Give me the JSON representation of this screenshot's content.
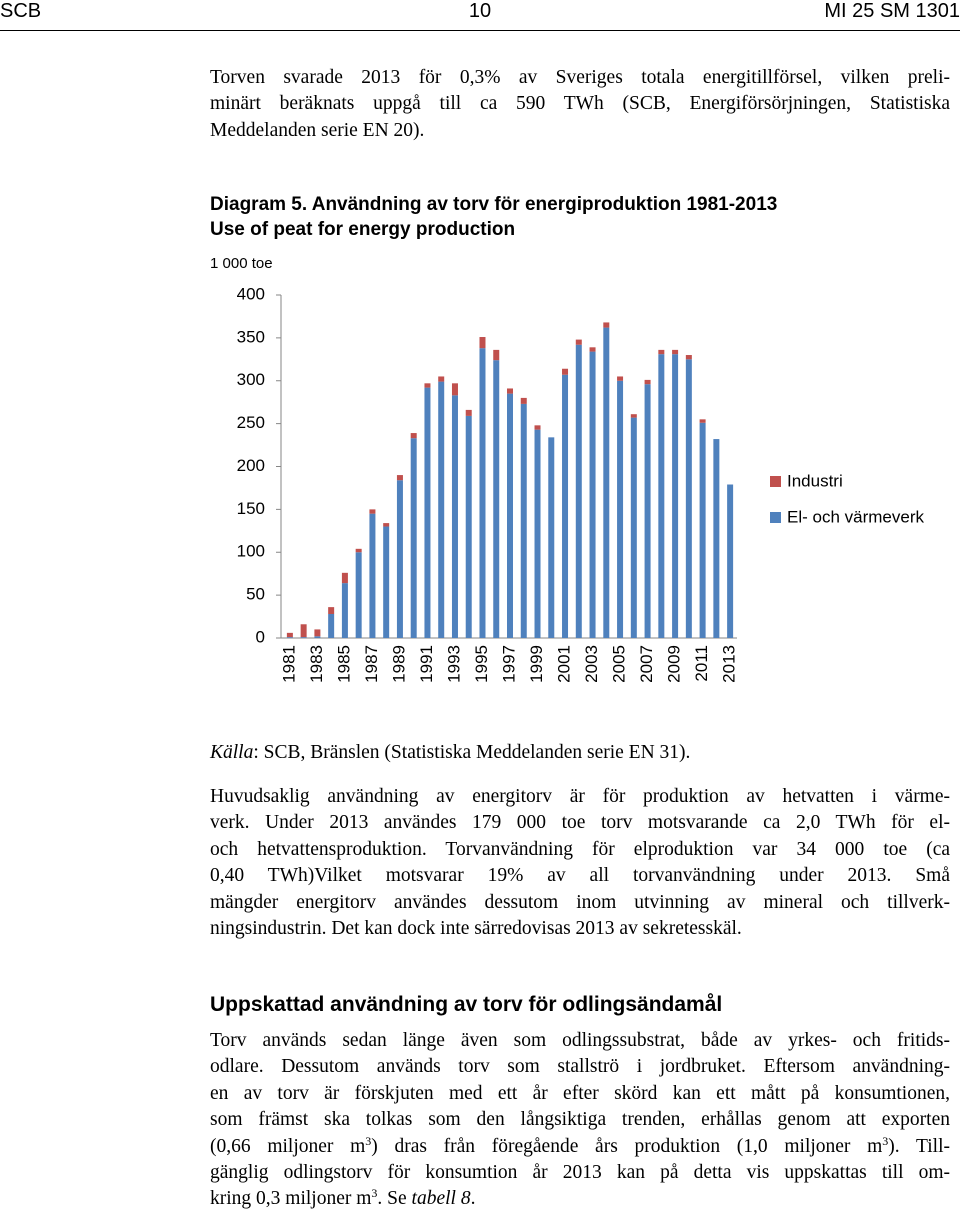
{
  "header": {
    "left": "SCB",
    "center": "10",
    "right": "MI 25 SM 1301"
  },
  "paragraphs": [
    {
      "lines": [
        "Torven svarade 2013 för 0,3% av Sveriges totala energitillförsel, vilken preli-",
        "minärt beräknats uppgå till ca 590 TWh (SCB, Energiförsörjningen, Statistiska",
        "Meddelanden serie EN 20)."
      ]
    }
  ],
  "chart_data": {
    "type": "bar",
    "stacked": true,
    "title": "Diagram 5. Användning av torv för energiproduktion 1981-2013",
    "subtitle": "Use of peat for energy production",
    "ylabel": "1 000 toe",
    "categories": [
      "1981",
      null,
      "1983",
      null,
      "1985",
      null,
      "1987",
      null,
      "1989",
      null,
      "1991",
      null,
      "1993",
      null,
      "1995",
      null,
      "1997",
      null,
      "1999",
      null,
      "2001",
      null,
      "2003",
      null,
      "2005",
      null,
      "2007",
      null,
      "2009",
      null,
      "2011",
      null,
      "2013"
    ],
    "series": [
      {
        "name": "El- och värmeverk",
        "color": "#4f81bd",
        "values": [
          1,
          1,
          2,
          28,
          64,
          100,
          145,
          130,
          184,
          233,
          292,
          299,
          283,
          259,
          338,
          324,
          285,
          273,
          243,
          234,
          307,
          342,
          334,
          362,
          300,
          257,
          296,
          331,
          331,
          325,
          251,
          232,
          179
        ]
      },
      {
        "name": "Industri",
        "color": "#c0504d",
        "values": [
          5,
          15,
          8,
          8,
          12,
          4,
          5,
          4,
          6,
          6,
          5,
          6,
          14,
          7,
          13,
          12,
          6,
          7,
          5,
          0,
          7,
          6,
          5,
          6,
          5,
          4,
          5,
          5,
          5,
          5,
          4,
          0,
          0
        ]
      }
    ],
    "ylim": [
      0,
      400
    ],
    "yticks": [
      0,
      50,
      100,
      150,
      200,
      250,
      300,
      350,
      400
    ],
    "grid": false,
    "legend": "right"
  },
  "caption": {
    "lines": [
      [
        {
          "text": "Källa",
          "style": "italic"
        },
        ": SCB, Bränslen (Statistiska Meddelanden serie EN 31)."
      ]
    ]
  },
  "paragraphs2": [
    {
      "lines": [
        "Huvudsaklig användning av energitorv är för produktion av hetvatten i värme-",
        "verk. Under 2013 användes 179 000 toe torv  motsvarande ca 2,0 TWh för el-",
        "och hetvattensproduktion. Torvanvändning för elproduktion var 34 000  toe (ca",
        "0,40 TWh)Vilket motsvarar 19% av all torvanvändning under 2013. Små",
        "mängder energitorv användes dessutom inom utvinning av mineral och tillverk-",
        "ningsindustrin. Det kan dock inte särredovisas 2013 av sekretesskäl."
      ]
    }
  ],
  "heading": "Uppskattad användning av torv för odlingsändamål",
  "paragraphs3": [
    {
      "lines": [
        "Torv används sedan länge även som odlingssubstrat, både av yrkes- och fritids-",
        "odlare. Dessutom används torv som stallströ i jordbruket. Eftersom användning-",
        "en av torv är förskjuten med ett år efter skörd kan ett mått på konsumtionen,",
        "som främst ska tolkas som den långsiktiga trenden, erhållas genom att exporten",
        [
          "(0,66 miljoner m",
          {
            "text": "3",
            "style": "sup"
          },
          ") dras från föregående års produktion (1,0 miljoner m",
          {
            "text": "3",
            "style": "sup"
          },
          "). Till-"
        ],
        "gänglig odlingstorv för konsumtion år 2013 kan på detta vis uppskattas till om-",
        [
          "kring 0,3 miljoner m",
          {
            "text": "3",
            "style": "sup"
          },
          ". Se ",
          {
            "text": "tabell 8",
            "style": "italic"
          },
          "."
        ]
      ]
    }
  ]
}
